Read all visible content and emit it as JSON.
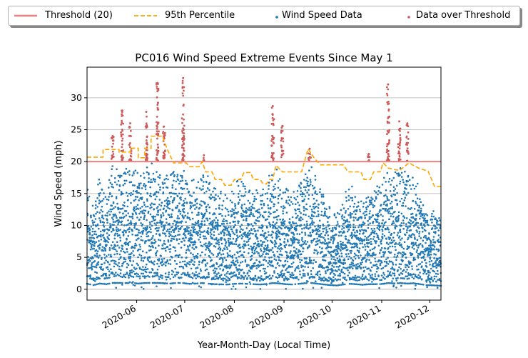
{
  "chart_data": {
    "type": "scatter",
    "title": "PC016 Wind Speed Extreme Events Since May 1",
    "xlabel": "Year-Month-Day (Local Time)",
    "ylabel": "Wind Speed (mph)",
    "x_tick_labels": [
      "2020-06",
      "2020-07",
      "2020-08",
      "2020-09",
      "2020-10",
      "2020-11",
      "2020-12"
    ],
    "x_range": [
      "2020-05-01",
      "2020-12-08"
    ],
    "y_ticks": [
      0,
      5,
      10,
      15,
      20,
      25,
      30
    ],
    "ylim": [
      -1.7,
      34.8
    ],
    "grid": "horizontal",
    "legend": {
      "placement": "top, above plot",
      "entries": [
        {
          "label": "Threshold (20)",
          "style": "solid line",
          "color": "#f08080"
        },
        {
          "label": "95th Percentile",
          "style": "dashed line",
          "color": "#ffa500"
        },
        {
          "label": "Wind Speed Data",
          "style": "dot",
          "color": "#1f77b4"
        },
        {
          "label": "Data over Threshold",
          "style": "dot",
          "color": "#cd5c5c"
        }
      ]
    },
    "threshold": {
      "name": "Threshold (20)",
      "y": 20,
      "color": "#f08080"
    },
    "percentile_95": {
      "name": "95th Percentile",
      "color": "#ffa500",
      "points": [
        [
          "2020-05-01",
          20.7
        ],
        [
          "2020-05-11",
          20.7
        ],
        [
          "2020-05-11",
          21.9
        ],
        [
          "2020-05-21",
          21.9
        ],
        [
          "2020-05-21",
          21.5
        ],
        [
          "2020-05-28",
          21.5
        ],
        [
          "2020-05-28",
          22.1
        ],
        [
          "2020-06-02",
          22.1
        ],
        [
          "2020-06-02",
          20.6
        ],
        [
          "2020-06-06",
          20.6
        ],
        [
          "2020-06-06",
          22.1
        ],
        [
          "2020-06-10",
          22.1
        ],
        [
          "2020-06-10",
          24.0
        ],
        [
          "2020-06-17",
          24.0
        ],
        [
          "2020-06-20",
          22.0
        ],
        [
          "2020-06-24",
          19.8
        ],
        [
          "2020-07-02",
          19.8
        ],
        [
          "2020-07-04",
          19.2
        ],
        [
          "2020-07-10",
          19.2
        ],
        [
          "2020-07-12",
          20.0
        ],
        [
          "2020-07-14",
          18.4
        ],
        [
          "2020-07-18",
          18.4
        ],
        [
          "2020-07-20",
          17.2
        ],
        [
          "2020-07-24",
          17.2
        ],
        [
          "2020-07-26",
          16.3
        ],
        [
          "2020-07-30",
          16.3
        ],
        [
          "2020-08-01",
          17.2
        ],
        [
          "2020-08-05",
          17.2
        ],
        [
          "2020-08-07",
          18.3
        ],
        [
          "2020-08-11",
          18.3
        ],
        [
          "2020-08-13",
          17.2
        ],
        [
          "2020-08-17",
          17.2
        ],
        [
          "2020-08-19",
          16.5
        ],
        [
          "2020-08-21",
          16.5
        ],
        [
          "2020-08-23",
          17.2
        ],
        [
          "2020-08-25",
          17.2
        ],
        [
          "2020-08-27",
          19.4
        ],
        [
          "2020-08-31",
          18.4
        ],
        [
          "2020-09-12",
          18.4
        ],
        [
          "2020-09-14",
          20.2
        ],
        [
          "2020-09-16",
          22.0
        ],
        [
          "2020-09-20",
          20.5
        ],
        [
          "2020-09-24",
          19.5
        ],
        [
          "2020-10-08",
          19.5
        ],
        [
          "2020-10-11",
          18.4
        ],
        [
          "2020-10-19",
          18.4
        ],
        [
          "2020-10-21",
          17.2
        ],
        [
          "2020-10-25",
          17.2
        ],
        [
          "2020-10-27",
          18.4
        ],
        [
          "2020-10-31",
          18.4
        ],
        [
          "2020-11-02",
          19.8
        ],
        [
          "2020-11-05",
          19.0
        ],
        [
          "2020-11-12",
          18.6
        ],
        [
          "2020-11-18",
          19.8
        ],
        [
          "2020-11-24",
          19.0
        ],
        [
          "2020-11-30",
          18.5
        ],
        [
          "2020-12-04",
          16.1
        ],
        [
          "2020-12-08",
          16.1
        ]
      ]
    },
    "series": [
      {
        "name": "Wind Speed Data",
        "color": "#1f77b4",
        "envelope": [
          [
            "2020-05-01",
            17.5
          ],
          [
            "2020-05-05",
            13.0
          ],
          [
            "2020-05-09",
            18.0
          ],
          [
            "2020-05-13",
            16.0
          ],
          [
            "2020-05-17",
            20.0
          ],
          [
            "2020-05-21",
            20.0
          ],
          [
            "2020-05-25",
            19.5
          ],
          [
            "2020-05-29",
            20.0
          ],
          [
            "2020-06-02",
            18.0
          ],
          [
            "2020-06-06",
            19.8
          ],
          [
            "2020-06-10",
            20.0
          ],
          [
            "2020-06-14",
            20.0
          ],
          [
            "2020-06-18",
            19.0
          ],
          [
            "2020-06-22",
            18.0
          ],
          [
            "2020-06-26",
            20.0
          ],
          [
            "2020-06-30",
            19.5
          ],
          [
            "2020-07-04",
            17.0
          ],
          [
            "2020-07-08",
            18.0
          ],
          [
            "2020-07-12",
            19.5
          ],
          [
            "2020-07-16",
            17.5
          ],
          [
            "2020-07-20",
            16.0
          ],
          [
            "2020-07-24",
            15.5
          ],
          [
            "2020-07-28",
            15.0
          ],
          [
            "2020-08-01",
            17.0
          ],
          [
            "2020-08-05",
            18.0
          ],
          [
            "2020-08-09",
            17.0
          ],
          [
            "2020-08-13",
            16.0
          ],
          [
            "2020-08-17",
            15.0
          ],
          [
            "2020-08-21",
            16.5
          ],
          [
            "2020-08-25",
            19.5
          ],
          [
            "2020-08-29",
            18.5
          ],
          [
            "2020-09-02",
            16.0
          ],
          [
            "2020-09-06",
            15.0
          ],
          [
            "2020-09-10",
            17.0
          ],
          [
            "2020-09-14",
            19.0
          ],
          [
            "2020-09-18",
            20.0
          ],
          [
            "2020-09-22",
            17.5
          ],
          [
            "2020-09-26",
            15.0
          ],
          [
            "2020-09-30",
            13.0
          ],
          [
            "2020-10-04",
            12.0
          ],
          [
            "2020-10-08",
            15.0
          ],
          [
            "2020-10-12",
            17.0
          ],
          [
            "2020-10-16",
            16.0
          ],
          [
            "2020-10-20",
            14.0
          ],
          [
            "2020-10-24",
            16.0
          ],
          [
            "2020-10-28",
            16.0
          ],
          [
            "2020-11-01",
            16.5
          ],
          [
            "2020-11-05",
            19.5
          ],
          [
            "2020-11-09",
            18.5
          ],
          [
            "2020-11-13",
            19.5
          ],
          [
            "2020-11-17",
            18.0
          ],
          [
            "2020-11-21",
            19.0
          ],
          [
            "2020-11-25",
            16.0
          ],
          [
            "2020-11-29",
            13.0
          ],
          [
            "2020-12-03",
            12.5
          ],
          [
            "2020-12-08",
            11.0
          ]
        ]
      },
      {
        "name": "Data over Threshold",
        "color": "#cd5c5c",
        "peaks": [
          [
            "2020-05-17",
            24.0
          ],
          [
            "2020-05-23",
            28.0
          ],
          [
            "2020-05-28",
            26.0
          ],
          [
            "2020-06-07",
            27.8
          ],
          [
            "2020-06-14",
            32.3
          ],
          [
            "2020-06-18",
            25.5
          ],
          [
            "2020-06-30",
            33.1
          ],
          [
            "2020-07-13",
            21.0
          ],
          [
            "2020-08-25",
            28.7
          ],
          [
            "2020-08-31",
            25.6
          ],
          [
            "2020-09-17",
            22.0
          ],
          [
            "2020-10-24",
            21.2
          ],
          [
            "2020-11-05",
            32.1
          ],
          [
            "2020-11-12",
            26.3
          ],
          [
            "2020-11-17",
            26.0
          ]
        ]
      }
    ]
  }
}
